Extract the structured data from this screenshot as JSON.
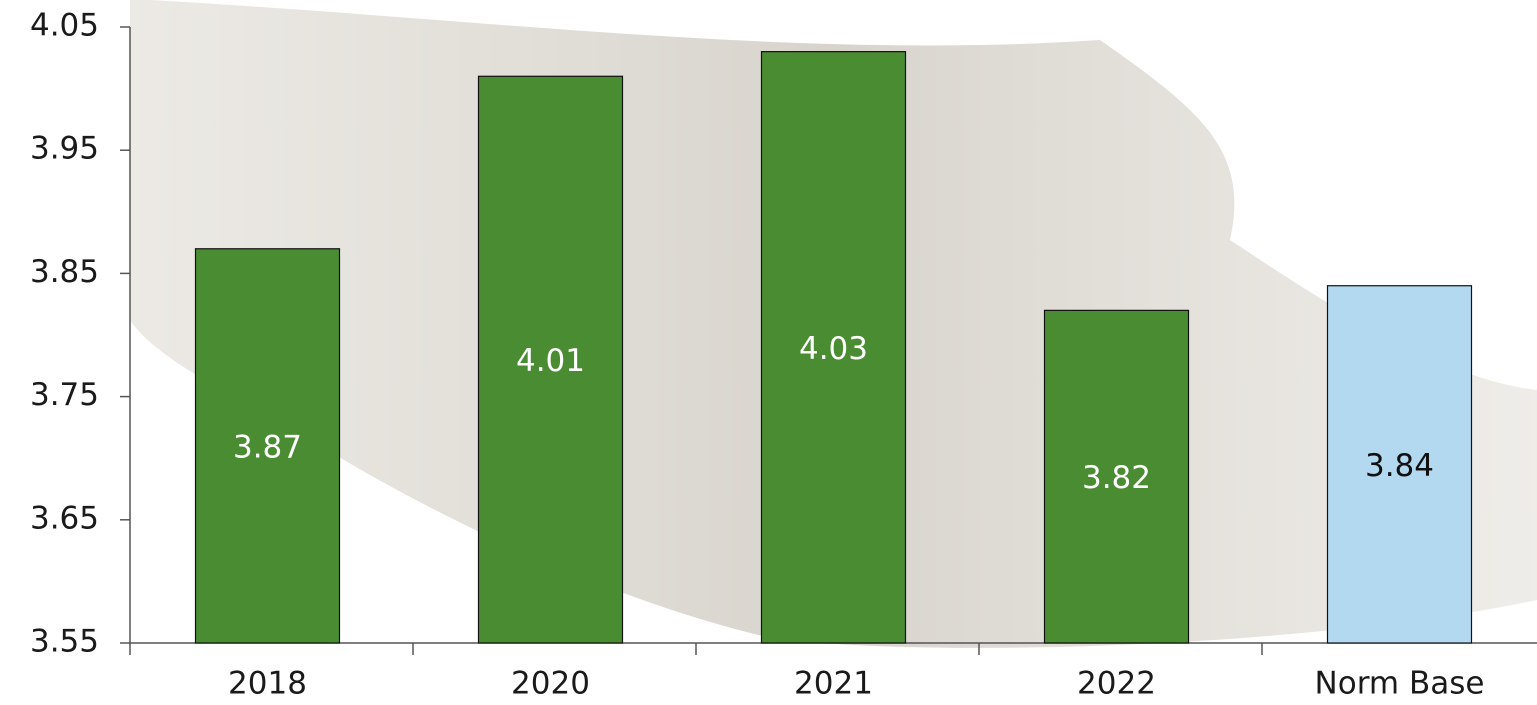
{
  "chart_data": {
    "type": "bar",
    "categories": [
      "2018",
      "2020",
      "2021",
      "2022",
      "Norm Base"
    ],
    "values": [
      3.87,
      4.01,
      4.03,
      3.82,
      3.84
    ],
    "colors": [
      "#4a8c32",
      "#4a8c32",
      "#4a8c32",
      "#4a8c32",
      "#b3d9f0"
    ],
    "ylim": [
      3.55,
      4.05
    ],
    "yticks": [
      3.55,
      3.65,
      3.75,
      3.85,
      3.95,
      4.05
    ],
    "data_labels": true
  }
}
